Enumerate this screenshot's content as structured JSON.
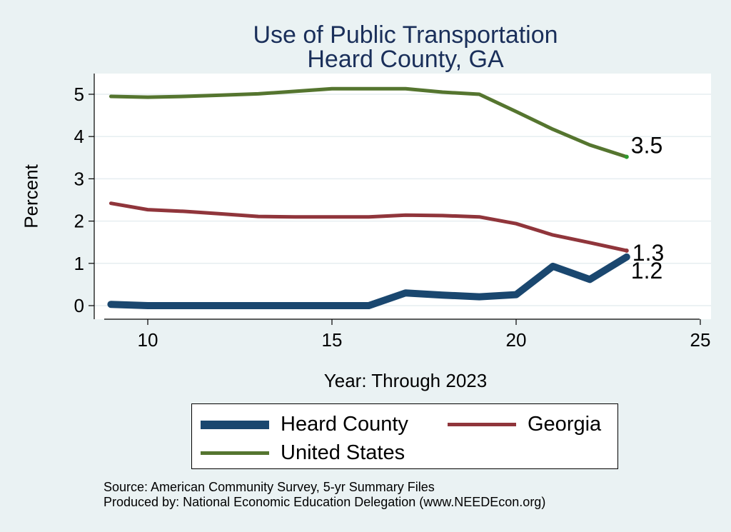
{
  "chart_data": {
    "type": "line",
    "title": "Use of Public Transportation",
    "subtitle": "Heard County, GA",
    "xlabel": "Year: Through 2023",
    "ylabel": "Percent",
    "xlim": [
      9,
      25
    ],
    "ylim": [
      0,
      5.2
    ],
    "x_ticks": [
      10,
      15,
      20,
      25
    ],
    "y_ticks": [
      0,
      1,
      2,
      3,
      4,
      5
    ],
    "grid": true,
    "legend_position": "bottom",
    "x": [
      9,
      10,
      11,
      12,
      13,
      14,
      15,
      16,
      17,
      18,
      19,
      20,
      21,
      22,
      23
    ],
    "series": [
      {
        "name": "Heard County",
        "color": "#1a476f",
        "values": [
          0.03,
          0.0,
          0.0,
          0.0,
          0.0,
          0.0,
          0.0,
          0.0,
          0.3,
          0.25,
          0.21,
          0.26,
          0.93,
          0.62,
          1.15
        ],
        "end_label": "1.2"
      },
      {
        "name": "Georgia",
        "color": "#90353b",
        "values": [
          2.42,
          2.27,
          2.23,
          2.17,
          2.11,
          2.1,
          2.1,
          2.1,
          2.14,
          2.13,
          2.1,
          1.94,
          1.67,
          1.49,
          1.3
        ],
        "end_label": "1.3"
      },
      {
        "name": "United States",
        "color": "#55752f",
        "values": [
          4.95,
          4.93,
          4.95,
          4.98,
          5.01,
          5.07,
          5.13,
          5.13,
          5.13,
          5.05,
          5.0,
          4.59,
          4.17,
          3.8,
          3.52
        ],
        "end_label": "3.5"
      }
    ]
  },
  "footer": {
    "source": "Source: American Community Survey, 5-yr Summary Files",
    "produced_by": "Produced by: National Economic Education Delegation (www.NEEDEcon.org)"
  }
}
